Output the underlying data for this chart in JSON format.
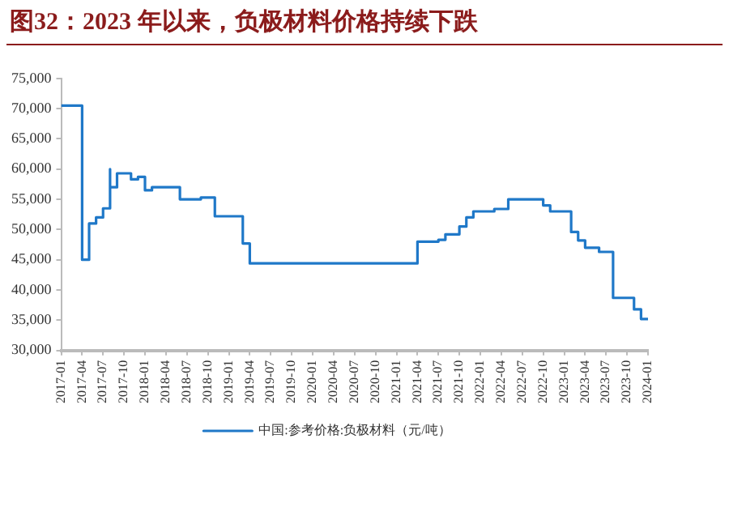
{
  "chart_data": {
    "type": "step",
    "title": "图32：2023 年以来，负极材料价格持续下跌",
    "x": [
      "2017-01",
      "2017-04",
      "2017-05",
      "2017-06",
      "2017-07",
      "2017-08",
      "2017-08",
      "2017-09",
      "2017-11",
      "2017-12",
      "2018-01",
      "2018-02",
      "2018-06",
      "2018-09",
      "2018-11",
      "2019-03",
      "2019-04",
      "2021-04",
      "2021-07",
      "2021-08",
      "2021-10",
      "2021-11",
      "2021-12",
      "2022-03",
      "2022-05",
      "2022-10",
      "2022-11",
      "2023-02",
      "2023-03",
      "2023-04",
      "2023-06",
      "2023-08",
      "2023-11",
      "2023-12",
      "2024-01"
    ],
    "series": [
      {
        "name": "中国:参考价格:负极材料（元/吨）",
        "color": "#1f78c8",
        "values": [
          70500,
          45000,
          51000,
          52000,
          53500,
          60000,
          57000,
          59300,
          58300,
          58700,
          56500,
          57000,
          55000,
          55300,
          52200,
          47700,
          44400,
          48000,
          48300,
          49200,
          50500,
          52000,
          53000,
          53400,
          55000,
          54000,
          53000,
          49600,
          48200,
          47000,
          46300,
          38700,
          36800,
          35200,
          35200
        ]
      }
    ],
    "xlim": [
      "2017-01",
      "2024-01"
    ],
    "xticks": [
      "2017-01",
      "2017-04",
      "2017-07",
      "2017-10",
      "2018-01",
      "2018-04",
      "2018-07",
      "2018-10",
      "2019-01",
      "2019-04",
      "2019-07",
      "2019-10",
      "2020-01",
      "2020-04",
      "2020-07",
      "2020-10",
      "2021-01",
      "2021-04",
      "2021-07",
      "2021-10",
      "2022-01",
      "2022-04",
      "2022-07",
      "2022-10",
      "2023-01",
      "2023-04",
      "2023-07",
      "2023-10",
      "2024-01"
    ],
    "ylim": [
      30000,
      75000
    ],
    "yticks": [
      {
        "value": 30000,
        "label": "30,000"
      },
      {
        "value": 35000,
        "label": "35,000"
      },
      {
        "value": 40000,
        "label": "40,000"
      },
      {
        "value": 45000,
        "label": "45,000"
      },
      {
        "value": 50000,
        "label": "50,000"
      },
      {
        "value": 55000,
        "label": "55,000"
      },
      {
        "value": 60000,
        "label": "60,000"
      },
      {
        "value": 65000,
        "label": "65,000"
      },
      {
        "value": 70000,
        "label": "70,000"
      },
      {
        "value": 75000,
        "label": "75,000"
      }
    ],
    "grid": false,
    "legend": "bottom"
  }
}
